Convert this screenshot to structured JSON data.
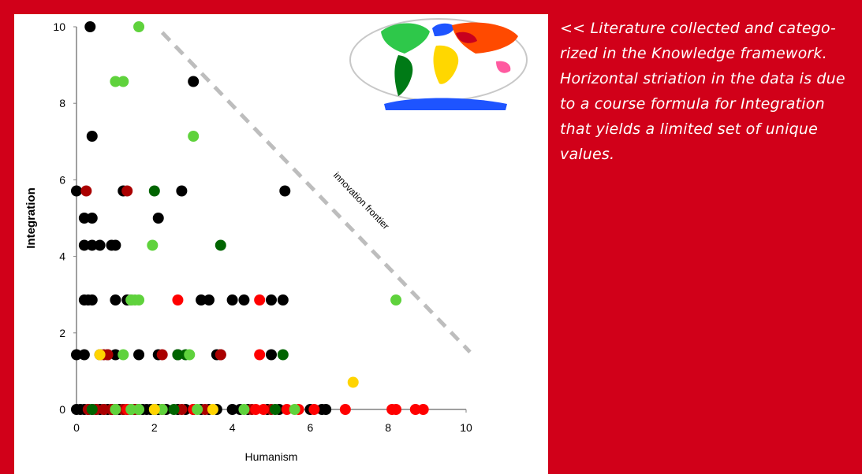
{
  "caption": "<< Literature collected and catego-rized in the Knowledge framework. Horizontal striation in the data is due to a course formula for Integration that yields a limited set of unique values.",
  "colors": {
    "background": "#d10019",
    "black": "#000000",
    "dark_red": "#aa0000",
    "red": "#ff0000",
    "dark_green": "#006400",
    "light_green": "#5fd23c",
    "yellow": "#ffd400",
    "frontier": "#bdbdbd"
  },
  "map_icon": "world-map-icon",
  "chart_data": {
    "type": "scatter",
    "xlabel": "Humanism",
    "ylabel": "Integration",
    "xlim": [
      0,
      10
    ],
    "ylim": [
      0,
      10
    ],
    "xticks": [
      "0",
      "2",
      "4",
      "6",
      "8",
      "10"
    ],
    "yticks": [
      "0",
      "2",
      "4",
      "6",
      "8",
      "10"
    ],
    "grid": false,
    "annotation": "innovation frontier",
    "frontier_line": [
      [
        2.2,
        9.85
      ],
      [
        10.1,
        1.5
      ]
    ],
    "series": [
      {
        "color_key": "black",
        "points": [
          [
            0.35,
            10
          ],
          [
            3.0,
            8.57
          ],
          [
            0.4,
            7.14
          ],
          [
            0.0,
            5.71
          ],
          [
            1.2,
            5.71
          ],
          [
            2.7,
            5.71
          ],
          [
            5.35,
            5.71
          ],
          [
            0.2,
            5.0
          ],
          [
            0.4,
            5.0
          ],
          [
            2.1,
            5.0
          ],
          [
            0.2,
            4.29
          ],
          [
            0.4,
            4.29
          ],
          [
            0.6,
            4.29
          ],
          [
            0.9,
            4.29
          ],
          [
            1.0,
            4.29
          ],
          [
            0.2,
            2.86
          ],
          [
            0.3,
            2.86
          ],
          [
            0.4,
            2.86
          ],
          [
            1.0,
            2.86
          ],
          [
            1.3,
            2.86
          ],
          [
            1.4,
            2.86
          ],
          [
            3.2,
            2.86
          ],
          [
            3.4,
            2.86
          ],
          [
            4.0,
            2.86
          ],
          [
            4.3,
            2.86
          ],
          [
            5.0,
            2.86
          ],
          [
            5.3,
            2.86
          ],
          [
            0.0,
            1.43
          ],
          [
            0.2,
            1.43
          ],
          [
            0.6,
            1.43
          ],
          [
            0.8,
            1.43
          ],
          [
            1.0,
            1.43
          ],
          [
            1.6,
            1.43
          ],
          [
            2.1,
            1.43
          ],
          [
            2.6,
            1.43
          ],
          [
            3.6,
            1.43
          ],
          [
            3.7,
            1.43
          ],
          [
            5.0,
            1.43
          ],
          [
            0.0,
            0
          ],
          [
            0.1,
            0
          ],
          [
            0.2,
            0
          ],
          [
            0.3,
            0
          ],
          [
            0.4,
            0
          ],
          [
            0.5,
            0
          ],
          [
            0.6,
            0
          ],
          [
            0.7,
            0
          ],
          [
            0.8,
            0
          ],
          [
            0.9,
            0
          ],
          [
            1.0,
            0
          ],
          [
            1.1,
            0
          ],
          [
            1.2,
            0
          ],
          [
            1.3,
            0
          ],
          [
            1.4,
            0
          ],
          [
            1.5,
            0
          ],
          [
            1.6,
            0
          ],
          [
            1.7,
            0
          ],
          [
            1.8,
            0
          ],
          [
            1.9,
            0
          ],
          [
            2.1,
            0
          ],
          [
            2.3,
            0
          ],
          [
            2.6,
            0
          ],
          [
            2.8,
            0
          ],
          [
            3.0,
            0
          ],
          [
            3.2,
            0
          ],
          [
            3.4,
            0
          ],
          [
            3.6,
            0
          ],
          [
            4.0,
            0
          ],
          [
            4.2,
            0
          ],
          [
            4.4,
            0
          ],
          [
            4.9,
            0
          ],
          [
            5.2,
            0
          ],
          [
            6.0,
            0
          ],
          [
            6.3,
            0
          ],
          [
            6.4,
            0
          ]
        ]
      },
      {
        "color_key": "dark_red",
        "points": [
          [
            0.25,
            5.71
          ],
          [
            1.3,
            5.71
          ],
          [
            0.7,
            1.43
          ],
          [
            0.8,
            1.43
          ],
          [
            2.2,
            1.43
          ],
          [
            3.7,
            1.43
          ],
          [
            0.3,
            0
          ],
          [
            0.5,
            0
          ],
          [
            0.7,
            0
          ],
          [
            0.9,
            0
          ],
          [
            1.2,
            0
          ],
          [
            1.5,
            0
          ],
          [
            2.2,
            0
          ],
          [
            2.7,
            0
          ],
          [
            3.3,
            0
          ],
          [
            4.5,
            0
          ],
          [
            5.0,
            0
          ]
        ]
      },
      {
        "color_key": "red",
        "points": [
          [
            2.6,
            2.86
          ],
          [
            4.7,
            2.86
          ],
          [
            4.7,
            1.43
          ],
          [
            1.3,
            0
          ],
          [
            3.0,
            0
          ],
          [
            4.6,
            0
          ],
          [
            4.8,
            0
          ],
          [
            5.4,
            0
          ],
          [
            5.7,
            0
          ],
          [
            6.1,
            0
          ],
          [
            6.9,
            0
          ],
          [
            8.1,
            0
          ],
          [
            8.2,
            0
          ],
          [
            8.7,
            0
          ],
          [
            8.9,
            0
          ]
        ]
      },
      {
        "color_key": "dark_green",
        "points": [
          [
            2.0,
            5.71
          ],
          [
            3.7,
            4.29
          ],
          [
            2.6,
            1.43
          ],
          [
            2.8,
            1.43
          ],
          [
            5.3,
            1.43
          ],
          [
            0.4,
            0
          ],
          [
            2.0,
            0
          ],
          [
            2.5,
            0
          ],
          [
            5.1,
            0
          ]
        ]
      },
      {
        "color_key": "light_green",
        "points": [
          [
            1.6,
            10
          ],
          [
            1.0,
            8.57
          ],
          [
            1.2,
            8.57
          ],
          [
            3.0,
            7.14
          ],
          [
            1.95,
            4.29
          ],
          [
            1.4,
            2.86
          ],
          [
            1.5,
            2.86
          ],
          [
            1.6,
            2.86
          ],
          [
            8.2,
            2.86
          ],
          [
            1.2,
            1.43
          ],
          [
            2.9,
            1.43
          ],
          [
            1.0,
            0
          ],
          [
            1.4,
            0
          ],
          [
            1.6,
            0
          ],
          [
            2.2,
            0
          ],
          [
            3.1,
            0
          ],
          [
            4.3,
            0
          ],
          [
            5.6,
            0
          ]
        ]
      },
      {
        "color_key": "yellow",
        "points": [
          [
            7.1,
            0.71
          ],
          [
            0.6,
            1.43
          ],
          [
            2.0,
            0
          ],
          [
            3.5,
            0
          ]
        ]
      }
    ]
  }
}
